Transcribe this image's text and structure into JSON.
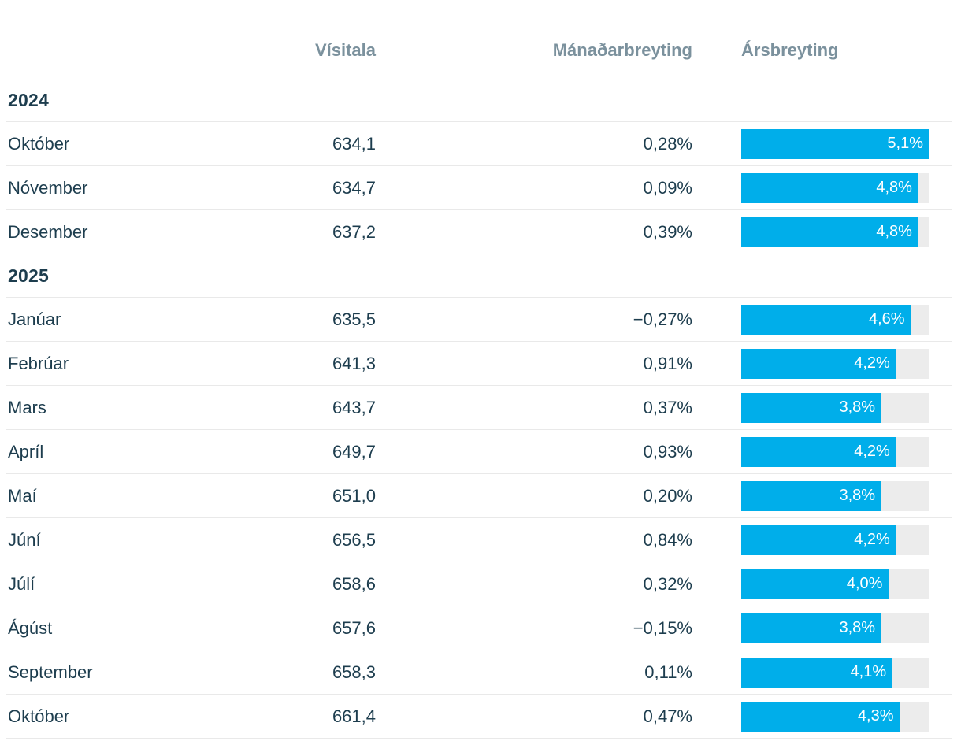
{
  "colors": {
    "bar_fill": "#00aeea",
    "bar_track": "#ececec",
    "text_dark": "#1d3d4e",
    "header_gray": "#7b919d",
    "divider": "#e9e9e9",
    "bar_label": "#ffffff"
  },
  "header": {
    "columns": [
      "Vísitala",
      "Mánaðarbreyting",
      "Ársbreyting"
    ]
  },
  "chart_data": {
    "type": "table",
    "columns": [
      "",
      "Vísitala",
      "Mánaðarbreyting",
      "Ársbreyting"
    ],
    "bar_column": "Ársbreyting",
    "bar_max_value": 5.1,
    "groups": [
      {
        "year": "2024",
        "rows": [
          {
            "month": "Október",
            "visitala": "634,1",
            "manadarbreyting": "0,28%",
            "arsbreyting": "5,1%",
            "arsbreyting_value": 5.1
          },
          {
            "month": "Nóvember",
            "visitala": "634,7",
            "manadarbreyting": "0,09%",
            "arsbreyting": "4,8%",
            "arsbreyting_value": 4.8
          },
          {
            "month": "Desember",
            "visitala": "637,2",
            "manadarbreyting": "0,39%",
            "arsbreyting": "4,8%",
            "arsbreyting_value": 4.8
          }
        ]
      },
      {
        "year": "2025",
        "rows": [
          {
            "month": "Janúar",
            "visitala": "635,5",
            "manadarbreyting": "−0,27%",
            "arsbreyting": "4,6%",
            "arsbreyting_value": 4.6
          },
          {
            "month": "Febrúar",
            "visitala": "641,3",
            "manadarbreyting": "0,91%",
            "arsbreyting": "4,2%",
            "arsbreyting_value": 4.2
          },
          {
            "month": "Mars",
            "visitala": "643,7",
            "manadarbreyting": "0,37%",
            "arsbreyting": "3,8%",
            "arsbreyting_value": 3.8
          },
          {
            "month": "Apríl",
            "visitala": "649,7",
            "manadarbreyting": "0,93%",
            "arsbreyting": "4,2%",
            "arsbreyting_value": 4.2
          },
          {
            "month": "Maí",
            "visitala": "651,0",
            "manadarbreyting": "0,20%",
            "arsbreyting": "3,8%",
            "arsbreyting_value": 3.8
          },
          {
            "month": "Júní",
            "visitala": "656,5",
            "manadarbreyting": "0,84%",
            "arsbreyting": "4,2%",
            "arsbreyting_value": 4.2
          },
          {
            "month": "Júlí",
            "visitala": "658,6",
            "manadarbreyting": "0,32%",
            "arsbreyting": "4,0%",
            "arsbreyting_value": 4.0
          },
          {
            "month": "Ágúst",
            "visitala": "657,6",
            "manadarbreyting": "−0,15%",
            "arsbreyting": "3,8%",
            "arsbreyting_value": 3.8
          },
          {
            "month": "September",
            "visitala": "658,3",
            "manadarbreyting": "0,11%",
            "arsbreyting": "4,1%",
            "arsbreyting_value": 4.1
          },
          {
            "month": "Október",
            "visitala": "661,4",
            "manadarbreyting": "0,47%",
            "arsbreyting": "4,3%",
            "arsbreyting_value": 4.3
          }
        ]
      }
    ]
  }
}
